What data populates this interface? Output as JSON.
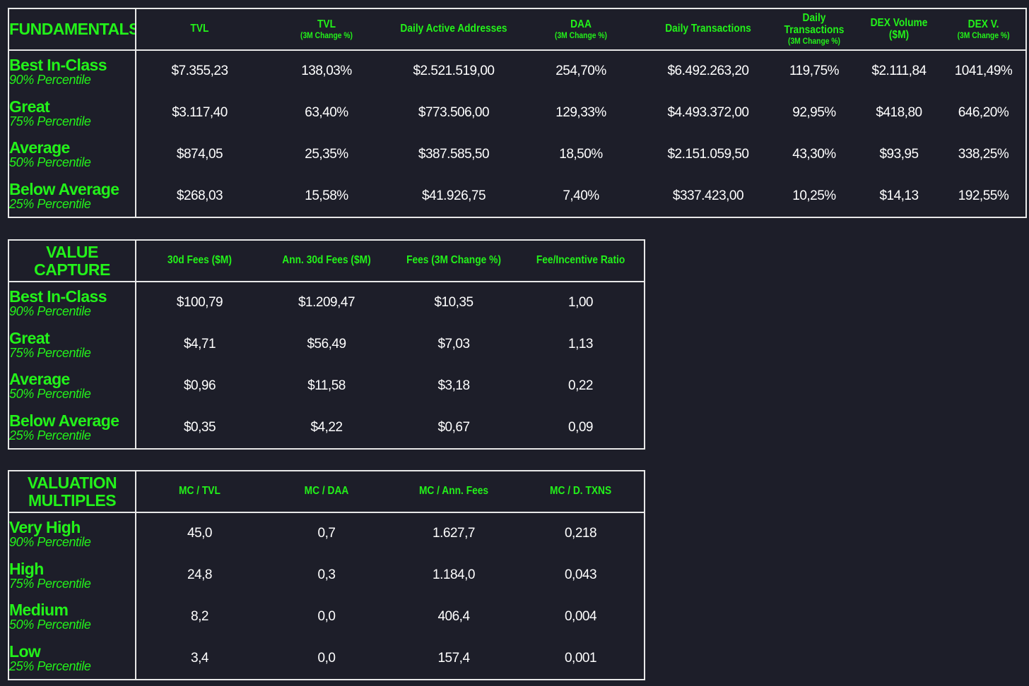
{
  "fundamentals": {
    "title": "FUNDAMENTALS",
    "columns": [
      {
        "label": "TVL",
        "sub": ""
      },
      {
        "label": "TVL",
        "sub": "(3M Change %)"
      },
      {
        "label": "Daily Active Addresses",
        "sub": ""
      },
      {
        "label": "DAA",
        "sub": "(3M Change %)"
      },
      {
        "label": "Daily Transactions",
        "sub": ""
      },
      {
        "label": "Daily Transactions",
        "sub": "(3M Change %)"
      },
      {
        "label": "DEX Volume ($M)",
        "sub": ""
      },
      {
        "label": "DEX V.",
        "sub": "(3M Change %)"
      }
    ],
    "rows": [
      {
        "tier": "Best In-Class",
        "percentile": "90% Percentile",
        "values": [
          "$7.355,23",
          "138,03%",
          "$2.521.519,00",
          "254,70%",
          "$6.492.263,20",
          "119,75%",
          "$2.111,84",
          "1041,49%"
        ]
      },
      {
        "tier": "Great",
        "percentile": "75% Percentile",
        "values": [
          "$3.117,40",
          "63,40%",
          "$773.506,00",
          "129,33%",
          "$4.493.372,00",
          "92,95%",
          "$418,80",
          "646,20%"
        ]
      },
      {
        "tier": "Average",
        "percentile": "50% Percentile",
        "values": [
          "$874,05",
          "25,35%",
          "$387.585,50",
          "18,50%",
          "$2.151.059,50",
          "43,30%",
          "$93,95",
          "338,25%"
        ]
      },
      {
        "tier": "Below Average",
        "percentile": "25% Percentile",
        "values": [
          "$268,03",
          "15,58%",
          "$41.926,75",
          "7,40%",
          "$337.423,00",
          "10,25%",
          "$14,13",
          "192,55%"
        ]
      }
    ]
  },
  "value_capture": {
    "title": "VALUE CAPTURE",
    "columns": [
      {
        "label": "30d Fees ($M)",
        "sub": ""
      },
      {
        "label": "Ann. 30d Fees ($M)",
        "sub": ""
      },
      {
        "label": "Fees (3M Change %)",
        "sub": ""
      },
      {
        "label": "Fee/Incentive Ratio",
        "sub": ""
      }
    ],
    "rows": [
      {
        "tier": "Best In-Class",
        "percentile": "90% Percentile",
        "values": [
          "$100,79",
          "$1.209,47",
          "$10,35",
          "1,00"
        ]
      },
      {
        "tier": "Great",
        "percentile": "75% Percentile",
        "values": [
          "$4,71",
          "$56,49",
          "$7,03",
          "1,13"
        ]
      },
      {
        "tier": "Average",
        "percentile": "50% Percentile",
        "values": [
          "$0,96",
          "$11,58",
          "$3,18",
          "0,22"
        ]
      },
      {
        "tier": "Below Average",
        "percentile": "25% Percentile",
        "values": [
          "$0,35",
          "$4,22",
          "$0,67",
          "0,09"
        ]
      }
    ]
  },
  "valuation_multiples": {
    "title": "VALUATION MULTIPLES",
    "columns": [
      {
        "label": "MC / TVL",
        "sub": ""
      },
      {
        "label": "MC /  DAA",
        "sub": ""
      },
      {
        "label": "MC / Ann. Fees",
        "sub": ""
      },
      {
        "label": "MC / D. TXNS",
        "sub": ""
      }
    ],
    "rows": [
      {
        "tier": "Very High",
        "percentile": "90% Percentile",
        "values": [
          "45,0",
          "0,7",
          "1.627,7",
          "0,218"
        ]
      },
      {
        "tier": "High",
        "percentile": "75% Percentile",
        "values": [
          "24,8",
          "0,3",
          "1.184,0",
          "0,043"
        ]
      },
      {
        "tier": "Medium",
        "percentile": "50% Percentile",
        "values": [
          "8,2",
          "0,0",
          "406,4",
          "0,004"
        ]
      },
      {
        "tier": "Low",
        "percentile": "25% Percentile",
        "values": [
          "3,4",
          "0,0",
          "157,4",
          "0,001"
        ]
      }
    ]
  }
}
